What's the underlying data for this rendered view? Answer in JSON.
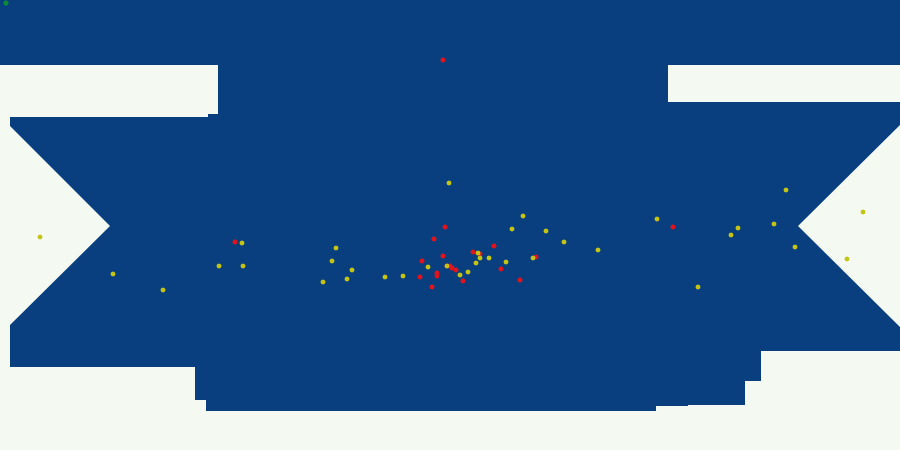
{
  "game": {
    "colors": {
      "background": "#f4faf1",
      "arena": "#093f7f",
      "hero": "#0a8a3a",
      "enemy": "#e0141c",
      "pellet": "#c4c414"
    },
    "entities": {
      "hero": {
        "icon": "green-dot-icon"
      },
      "enemies": {
        "icon": "red-dot-icon",
        "count": 22
      },
      "pellets": {
        "icon": "yellow-dot-icon",
        "count": 38
      }
    }
  }
}
